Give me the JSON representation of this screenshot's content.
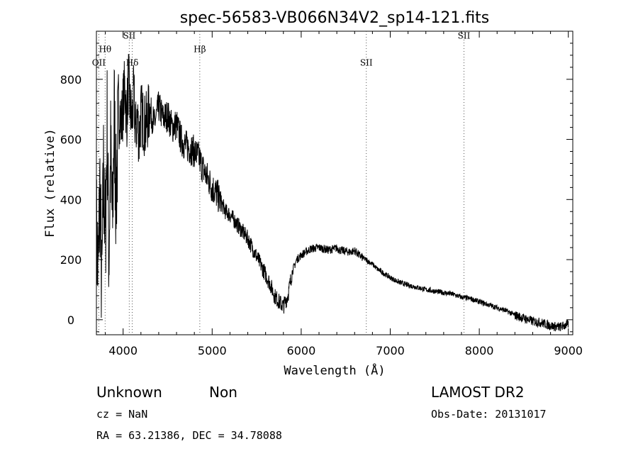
{
  "chart_data": {
    "type": "line",
    "title": "spec-56583-VB066N34V2_sp14-121.fits",
    "xlabel": "Wavelength (Å)",
    "ylabel": "Flux (relative)",
    "xlim": [
      3700,
      9050
    ],
    "ylim": [
      -50,
      960
    ],
    "xticks": [
      4000,
      5000,
      6000,
      7000,
      8000,
      9000
    ],
    "yticks": [
      0,
      200,
      400,
      600,
      800
    ],
    "grid": false,
    "series": [
      {
        "x": [
          3700,
          3720,
          3740,
          3760,
          3780,
          3800,
          3820,
          3840,
          3860,
          3880,
          3900,
          3920,
          3940,
          3960,
          3980,
          4000,
          4020,
          4040,
          4060,
          4080,
          4100,
          4120,
          4140,
          4160,
          4180,
          4200,
          4250,
          4300,
          4350,
          4400,
          4450,
          4500,
          4550,
          4600,
          4650,
          4700,
          4750,
          4800,
          4850,
          4900,
          4950,
          5000,
          5050,
          5100,
          5150,
          5200,
          5250,
          5300,
          5350,
          5400,
          5450,
          5500,
          5550,
          5600,
          5650,
          5700,
          5750,
          5800,
          5850,
          5900,
          5950,
          6000,
          6050,
          6100,
          6150,
          6200,
          6250,
          6300,
          6350,
          6400,
          6450,
          6500,
          6550,
          6600,
          6650,
          6700,
          6750,
          6800,
          6850,
          6900,
          6950,
          7000,
          7100,
          7200,
          7300,
          7400,
          7500,
          7600,
          7700,
          7800,
          7900,
          8000,
          8100,
          8200,
          8300,
          8400,
          8500,
          8600,
          8700,
          8800,
          8900,
          9000
        ],
        "y": [
          300,
          150,
          450,
          80,
          500,
          250,
          650,
          200,
          550,
          300,
          700,
          400,
          600,
          700,
          650,
          720,
          780,
          660,
          800,
          700,
          660,
          750,
          620,
          680,
          600,
          690,
          640,
          700,
          650,
          710,
          670,
          680,
          640,
          650,
          600,
          580,
          570,
          560,
          540,
          500,
          470,
          440,
          420,
          390,
          360,
          350,
          330,
          310,
          290,
          270,
          240,
          210,
          180,
          150,
          120,
          80,
          60,
          45,
          80,
          160,
          200,
          215,
          225,
          235,
          238,
          240,
          236,
          232,
          235,
          238,
          230,
          228,
          225,
          230,
          215,
          205,
          195,
          185,
          170,
          160,
          150,
          140,
          125,
          115,
          108,
          100,
          95,
          90,
          85,
          75,
          70,
          60,
          50,
          40,
          30,
          15,
          5,
          -5,
          -10,
          -20,
          -25,
          -15
        ]
      }
    ],
    "line_markers": [
      {
        "label": "OII",
        "x": 3727,
        "label_y": 845
      },
      {
        "label": "Hθ",
        "x": 3798,
        "label_y": 890
      },
      {
        "label": "SII",
        "x": 4069,
        "label_y": 935
      },
      {
        "label": "Hδ",
        "x": 4102,
        "label_y": 845
      },
      {
        "label": "Hβ",
        "x": 4861,
        "label_y": 890
      },
      {
        "label": "SII",
        "x": 6731,
        "label_y": 845
      },
      {
        "label": "SII",
        "x": 7828,
        "label_y": 935
      }
    ]
  },
  "info": {
    "object_class": "Unknown",
    "subclass": "Non",
    "survey": "LAMOST DR2",
    "cz": "cz = NaN",
    "obs_date": "Obs-Date: 20131017",
    "coords": "RA =  63.21386, DEC =  34.78088"
  }
}
